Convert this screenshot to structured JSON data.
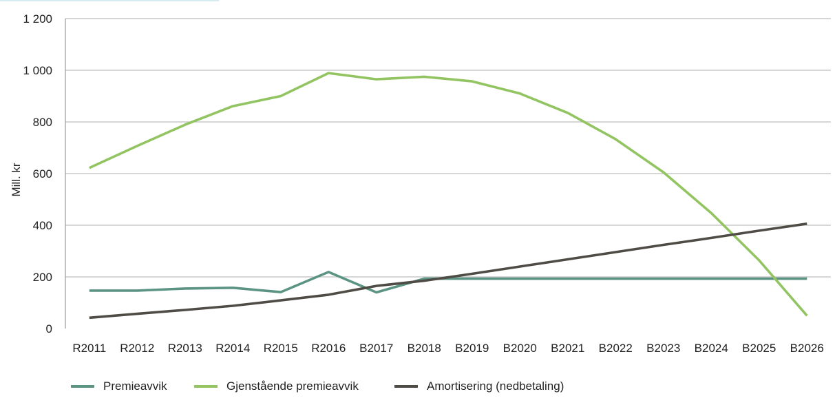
{
  "chart_data": {
    "type": "line",
    "ylabel": "Mill. kr",
    "ylim": [
      0,
      1200
    ],
    "yticks": [
      0,
      200,
      400,
      600,
      800,
      1000,
      1200
    ],
    "ytick_labels": [
      "0",
      "200",
      "400",
      "600",
      "800",
      "1 000",
      "1 200"
    ],
    "grid": true,
    "legend_position": "bottom",
    "categories": [
      "R2011",
      "R2012",
      "R2013",
      "R2014",
      "R2015",
      "R2016",
      "B2017",
      "B2018",
      "B2019",
      "B2020",
      "B2021",
      "B2022",
      "B2023",
      "B2024",
      "B2025",
      "B2026"
    ],
    "series": [
      {
        "name": "Premieavvik",
        "color": "#5b9483",
        "values": [
          147,
          147,
          155,
          158,
          141,
          219,
          140,
          193,
          193,
          193,
          193,
          193,
          193,
          193,
          193,
          193
        ]
      },
      {
        "name": "Gjenstående premieavvik",
        "color": "#93c462",
        "values": [
          622,
          707,
          789,
          861,
          900,
          989,
          965,
          975,
          957,
          910,
          835,
          733,
          605,
          447,
          264,
          50
        ]
      },
      {
        "name": "Amortisering (nedbetaling)",
        "color": "#4f4b45",
        "values": [
          42,
          57,
          72,
          88,
          109,
          131,
          165,
          185,
          212,
          240,
          268,
          296,
          324,
          351,
          379,
          406
        ]
      }
    ]
  }
}
